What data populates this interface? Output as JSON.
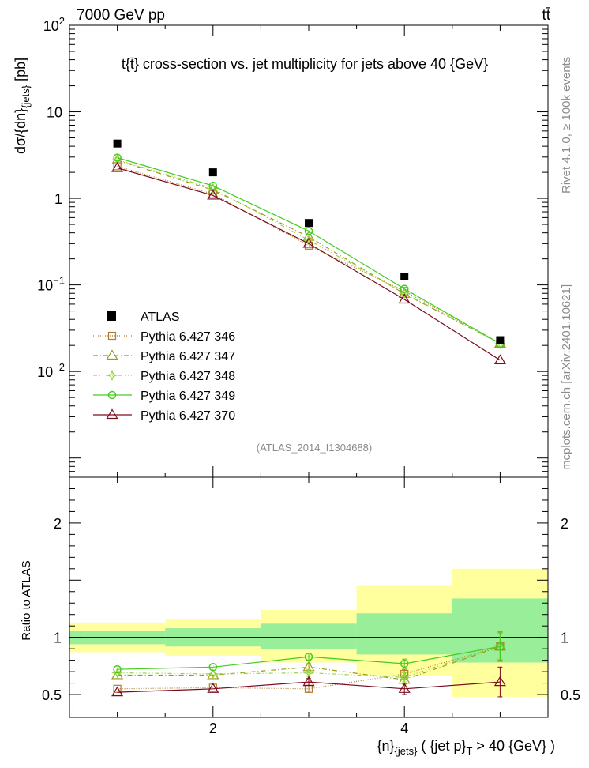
{
  "header": {
    "energy_label": "7000 GeV pp",
    "process_label": "tt̄",
    "side_label_rivet": "Rivet 4.1.0, ≥ 100k events",
    "side_label_site": "mcplots.cern.ch [arXiv:2401.10621]"
  },
  "chart_data": {
    "type": "line",
    "title": "t{t̄} cross-section vs. jet multiplicity for jets above 40 {GeV}",
    "analysis_id": "(ATLAS_2014_I1304688)",
    "ylabel": "dσ/{dn}{jets} [pb]",
    "ylabel_parts": {
      "main": "dσ/{dn}",
      "sub": "{jets}",
      "tail": " [pb]"
    },
    "xlabel_parts": {
      "a": "{n}",
      "a_sub": "{jets}",
      "b": " ( {jet p}",
      "b_sub": "T",
      "c": " > 40 {GeV} )"
    },
    "x": [
      1,
      2,
      3,
      4,
      5
    ],
    "xlim": [
      0.5,
      5.5
    ],
    "ylim": [
      0.0006,
      100
    ],
    "yscale": "log",
    "main_y_ticks": [
      {
        "v": 100,
        "label": "10",
        "exp": "2"
      },
      {
        "v": 10,
        "label": "10",
        "exp": ""
      },
      {
        "v": 1,
        "label": "1",
        "exp": ""
      },
      {
        "v": 0.1,
        "label": "10",
        "exp": "−1"
      },
      {
        "v": 0.01,
        "label": "10",
        "exp": "−2"
      }
    ],
    "x_ticks": [
      2,
      4
    ],
    "data": {
      "name": "ATLAS",
      "values": [
        4.3,
        2.0,
        0.52,
        0.125,
        0.023
      ]
    },
    "series": [
      {
        "name": "Pythia 6.427 346",
        "color": "#b07b2c",
        "dash": "1,2",
        "marker": "square",
        "values": [
          2.35,
          1.12,
          0.285,
          0.085,
          0.021
        ],
        "ratio": [
          0.55,
          0.56,
          0.55,
          0.68,
          0.92
        ],
        "ratio_err": [
          0.01,
          0.01,
          0.03,
          0.04,
          0.12
        ]
      },
      {
        "name": "Pythia 6.427 347",
        "color": "#9a9a14",
        "dash": "6,3,1,3",
        "marker": "triangle",
        "values": [
          2.75,
          1.25,
          0.36,
          0.079,
          0.021
        ],
        "ratio": [
          0.67,
          0.67,
          0.74,
          0.63,
          0.92
        ],
        "ratio_err": [
          0.01,
          0.01,
          0.03,
          0.04,
          0.12
        ]
      },
      {
        "name": "Pythia 6.427 348",
        "color": "#96d43a",
        "dash": "5,3,1,3,1,3",
        "marker": "star",
        "values": [
          2.8,
          1.3,
          0.33,
          0.08,
          0.021
        ],
        "ratio": [
          0.69,
          0.68,
          0.69,
          0.65,
          0.93
        ],
        "ratio_err": [
          0.01,
          0.01,
          0.03,
          0.04,
          0.12
        ]
      },
      {
        "name": "Pythia 6.427 349",
        "color": "#43cc1f",
        "dash": "",
        "marker": "circle",
        "values": [
          2.95,
          1.4,
          0.42,
          0.09,
          0.021
        ],
        "ratio": [
          0.72,
          0.74,
          0.83,
          0.77,
          0.92
        ],
        "ratio_err": [
          0.01,
          0.01,
          0.03,
          0.04,
          0.13
        ]
      },
      {
        "name": "Pythia 6.427 370",
        "color": "#7a0c1e",
        "dash": "",
        "marker": "triangle",
        "values": [
          2.25,
          1.08,
          0.3,
          0.068,
          0.0135
        ],
        "ratio": [
          0.52,
          0.55,
          0.61,
          0.55,
          0.61
        ],
        "ratio_err": [
          0.01,
          0.01,
          0.03,
          0.05,
          0.13
        ]
      }
    ],
    "ratio_panel": {
      "ylabel": "Ratio to ATLAS",
      "ylim": [
        0.3,
        2.4
      ],
      "ticks": [
        {
          "v": 2,
          "label": "2"
        },
        {
          "v": 1,
          "label": "1"
        },
        {
          "v": 0.5,
          "label": "0.5"
        }
      ],
      "band_inner": [
        [
          0.94,
          1.06
        ],
        [
          0.92,
          1.08
        ],
        [
          0.9,
          1.12
        ],
        [
          0.85,
          1.21
        ],
        [
          0.78,
          1.34
        ]
      ],
      "band_outer": [
        [
          0.87,
          1.13
        ],
        [
          0.84,
          1.16
        ],
        [
          0.78,
          1.24
        ],
        [
          0.66,
          1.45
        ],
        [
          0.48,
          1.6
        ]
      ]
    }
  }
}
